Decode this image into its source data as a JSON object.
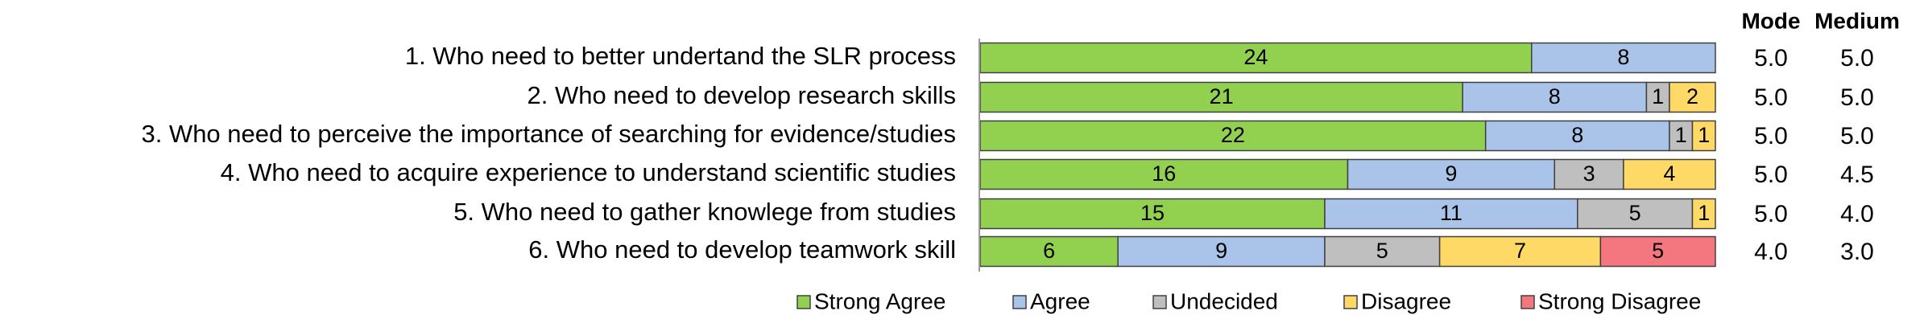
{
  "chart_data": {
    "type": "stacked_barh",
    "categories": [
      "1. Who need to better undertand the SLR process",
      "2. Who need to develop research skills",
      "3. Who need to perceive the importance of searching for evidence/studies",
      "4. Who need to acquire experience to understand scientific studies",
      "5. Who need to gather knowlege from studies",
      "6. Who need to develop teamwork skill"
    ],
    "series": [
      {
        "name": "Strong Agree",
        "color": "#92d050",
        "values": [
          24,
          21,
          22,
          16,
          15,
          6
        ]
      },
      {
        "name": "Agree",
        "color": "#a9c4e8",
        "values": [
          8,
          8,
          8,
          9,
          11,
          9
        ]
      },
      {
        "name": "Undecided",
        "color": "#bfbfbf",
        "values": [
          null,
          1,
          1,
          3,
          5,
          5
        ]
      },
      {
        "name": "Disagree",
        "color": "#ffd966",
        "values": [
          null,
          2,
          1,
          4,
          1,
          7
        ]
      },
      {
        "name": "Strong Disagree",
        "color": "#f4777f",
        "values": [
          null,
          null,
          null,
          null,
          null,
          5
        ]
      }
    ],
    "xlim": [
      0,
      32
    ],
    "columns": [
      {
        "header": "Mode",
        "values": [
          "5.0",
          "5.0",
          "5.0",
          "5.0",
          "5.0",
          "4.0"
        ]
      },
      {
        "header": "Medium",
        "values": [
          "5.0",
          "5.0",
          "5.0",
          "4.5",
          "4.0",
          "3.0"
        ]
      }
    ],
    "legend": "bottom"
  }
}
